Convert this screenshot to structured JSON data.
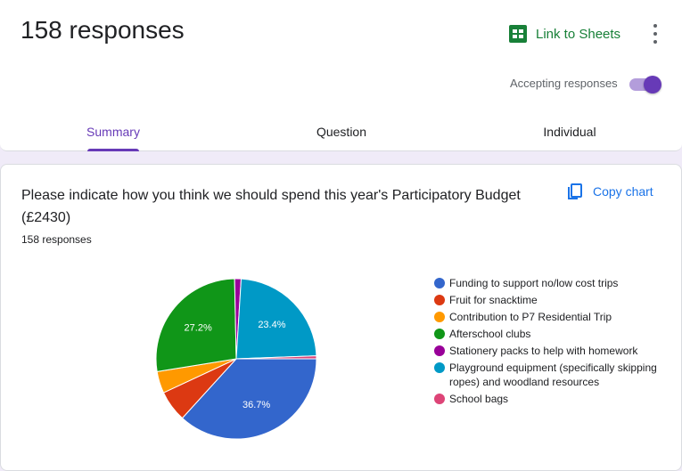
{
  "header": {
    "responses_title": "158 responses",
    "link_to_sheets_label": "Link to Sheets",
    "accepting_label": "Accepting responses",
    "accepting_on": true
  },
  "tabs": [
    {
      "label": "Summary",
      "active": true
    },
    {
      "label": "Question",
      "active": false
    },
    {
      "label": "Individual",
      "active": false
    }
  ],
  "question": {
    "title": "Please indicate how you think we should spend this year's Participatory Budget (£2430)",
    "response_count": "158 responses",
    "copy_chart_label": "Copy chart"
  },
  "colors": {
    "accent": "#673ab7",
    "sheets_green": "#188038",
    "link_blue": "#1a73e8"
  },
  "chart_data": {
    "type": "pie",
    "slices": [
      {
        "label": "Funding to support no/low cost trips",
        "value": 36.7,
        "color": "#3366cc",
        "data_label": "36.7%"
      },
      {
        "label": "Fruit for snacktime",
        "value": 6.3,
        "color": "#dc3912",
        "data_label": ""
      },
      {
        "label": "Contribution to P7 Residential Trip",
        "value": 4.4,
        "color": "#ff9900",
        "data_label": ""
      },
      {
        "label": "Afterschool clubs",
        "value": 27.2,
        "color": "#109618",
        "data_label": "27.2%"
      },
      {
        "label": "Stationery packs to help with homework",
        "value": 1.3,
        "color": "#990099",
        "data_label": ""
      },
      {
        "label": "Playground equipment (specifically skipping ropes) and woodland resources",
        "value": 23.4,
        "color": "#0099c6",
        "data_label": "23.4%"
      },
      {
        "label": "School bags",
        "value": 0.6,
        "color": "#dd4477",
        "data_label": ""
      }
    ],
    "legend_placement": "right"
  }
}
